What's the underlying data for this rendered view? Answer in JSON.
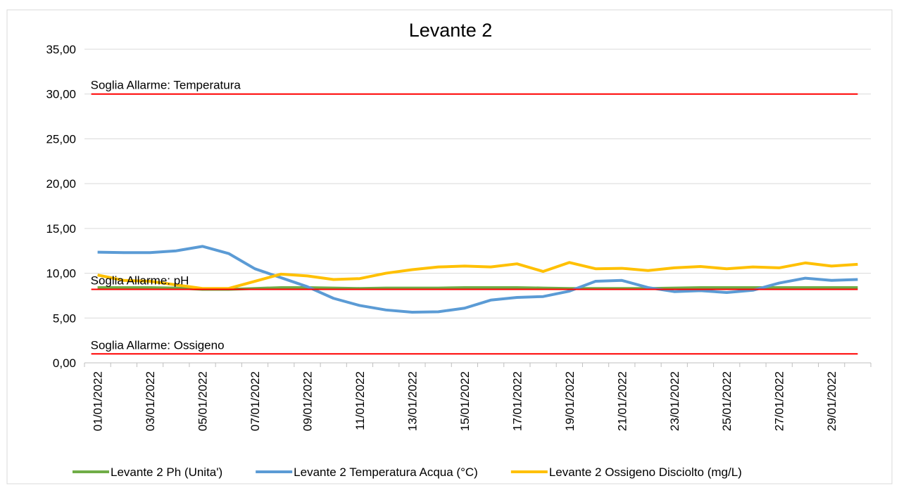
{
  "chart_data": {
    "type": "line",
    "title": "Levante 2",
    "categories": [
      "01/01/2022",
      null,
      "03/01/2022",
      null,
      "05/01/2022",
      null,
      "07/01/2022",
      null,
      "09/01/2022",
      null,
      "11/01/2022",
      null,
      "13/01/2022",
      null,
      "15/01/2022",
      null,
      "17/01/2022",
      null,
      "19/01/2022",
      null,
      "21/01/2022",
      null,
      "23/01/2022",
      null,
      "25/01/2022",
      null,
      "27/01/2022",
      null,
      "29/01/2022",
      null
    ],
    "series": [
      {
        "name": "Levante 2 Ph (Unita')",
        "color": "#70ad47",
        "values": [
          8.4,
          8.4,
          8.4,
          8.35,
          8.2,
          8.2,
          8.3,
          8.4,
          8.4,
          8.35,
          8.3,
          8.35,
          8.35,
          8.35,
          8.4,
          8.4,
          8.4,
          8.35,
          8.3,
          8.3,
          8.3,
          8.3,
          8.35,
          8.4,
          8.4,
          8.4,
          8.4,
          8.4,
          8.4,
          8.4
        ]
      },
      {
        "name": "Levante 2 Temperatura Acqua (°C)",
        "color": "#5b9bd5",
        "values": [
          12.35,
          12.3,
          12.3,
          12.5,
          13.0,
          12.2,
          10.5,
          9.5,
          8.5,
          7.2,
          6.4,
          5.9,
          5.65,
          5.7,
          6.1,
          7.0,
          7.3,
          7.4,
          8.0,
          9.1,
          9.2,
          8.4,
          7.95,
          8.05,
          7.85,
          8.1,
          8.9,
          9.45,
          9.2,
          9.3
        ]
      },
      {
        "name": "Levante 2 Ossigeno Disciolto (mg/L)",
        "color": "#ffc000",
        "values": [
          9.8,
          9.2,
          9.1,
          8.7,
          8.3,
          8.3,
          9.1,
          9.9,
          9.7,
          9.3,
          9.4,
          10.0,
          10.4,
          10.7,
          10.8,
          10.7,
          11.05,
          10.2,
          11.2,
          10.5,
          10.55,
          10.3,
          10.6,
          10.75,
          10.5,
          10.7,
          10.6,
          11.15,
          10.8,
          11.0
        ]
      }
    ],
    "thresholds": [
      {
        "label": "Soglia Allarme: Temperatura",
        "value": 30,
        "color": "#ff0000"
      },
      {
        "label": "Soglia Allarme: pH",
        "value": 8.2,
        "color": "#ff0000"
      },
      {
        "label": "Soglia Allarme: Ossigeno",
        "value": 1,
        "color": "#ff0000"
      }
    ],
    "ylim": [
      0,
      35
    ],
    "yticks": [
      {
        "value": 0,
        "label": "0,00"
      },
      {
        "value": 5,
        "label": "5,00"
      },
      {
        "value": 10,
        "label": "10,00"
      },
      {
        "value": 15,
        "label": "15,00"
      },
      {
        "value": 20,
        "label": "20,00"
      },
      {
        "value": 25,
        "label": "25,00"
      },
      {
        "value": 30,
        "label": "30,00"
      },
      {
        "value": 35,
        "label": "35,00"
      }
    ],
    "grid": true,
    "legend": "bottom"
  }
}
